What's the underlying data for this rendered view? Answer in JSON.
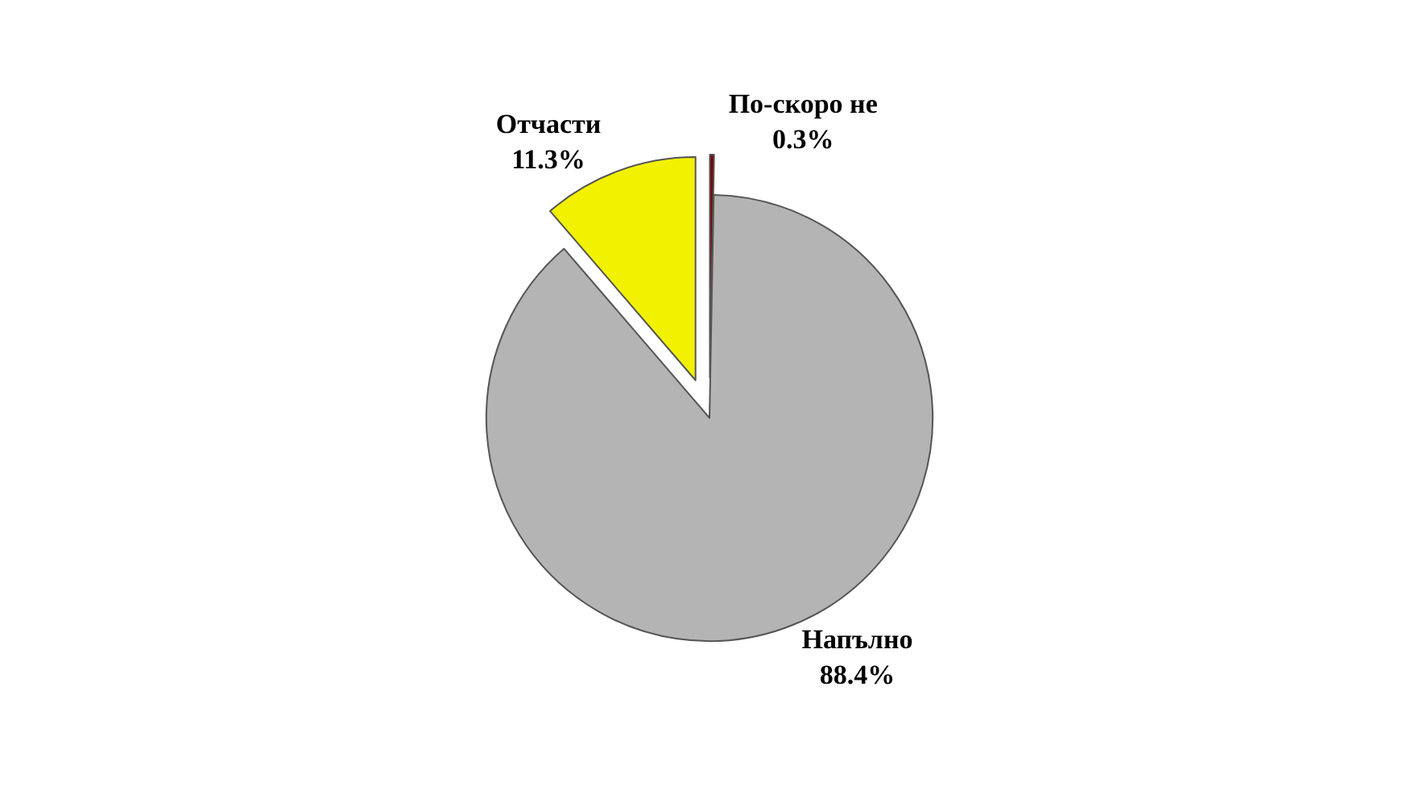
{
  "chart_data": {
    "type": "pie",
    "categories": [
      "По-скоро не",
      "Напълно",
      "Отчасти"
    ],
    "values": [
      0.3,
      88.4,
      11.3
    ],
    "value_labels": [
      "0.3%",
      "88.4%",
      "11.3%"
    ],
    "colors": [
      "#7a0000",
      "#b4b4b4",
      "#f2f200"
    ],
    "legend": false
  }
}
